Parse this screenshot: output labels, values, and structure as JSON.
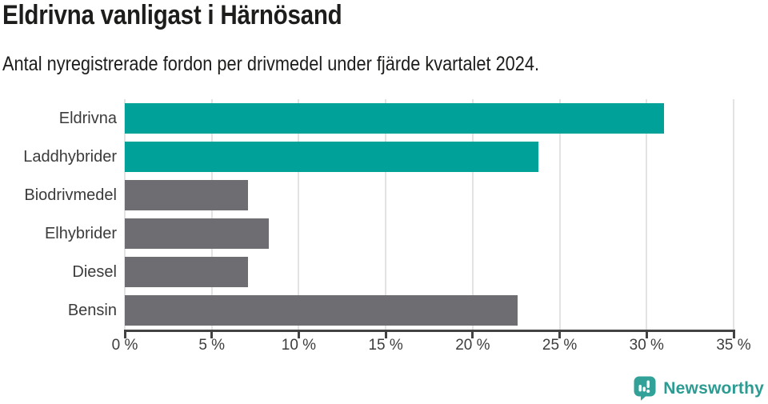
{
  "header": {
    "title": "Eldrivna vanligast i Härnösand",
    "subtitle": "Antal nyregistrerade fordon per drivmedel under fjärde kvartalet 2024."
  },
  "chart_data": {
    "type": "bar",
    "orientation": "horizontal",
    "title": "Eldrivna vanligast i Härnösand",
    "subtitle": "Antal nyregistrerade fordon per drivmedel under fjärde kvartalet 2024.",
    "categories": [
      "Eldrivna",
      "Laddhybrider",
      "Biodrivmedel",
      "Elhybrider",
      "Diesel",
      "Bensin"
    ],
    "values": [
      31.0,
      23.8,
      7.1,
      8.3,
      7.1,
      22.6
    ],
    "unit": "%",
    "bar_colors": [
      "#00a199",
      "#00a199",
      "#6d6d72",
      "#6d6d72",
      "#6d6d72",
      "#6d6d72"
    ],
    "highlight_color": "#00a199",
    "default_color": "#6d6d72",
    "xlim": [
      0,
      35
    ],
    "x_ticks": [
      0,
      5,
      10,
      15,
      20,
      25,
      30,
      35
    ],
    "x_tick_labels": [
      "0 %",
      "5 %",
      "10 %",
      "15 %",
      "20 %",
      "25 %",
      "30 %",
      "35 %"
    ],
    "grid": "vertical-only",
    "legend": "none"
  },
  "footer": {
    "brand": "Newsworthy",
    "brand_color": "#2c9c93",
    "logo_icon": "newsworthy-pin-barchart-icon"
  }
}
